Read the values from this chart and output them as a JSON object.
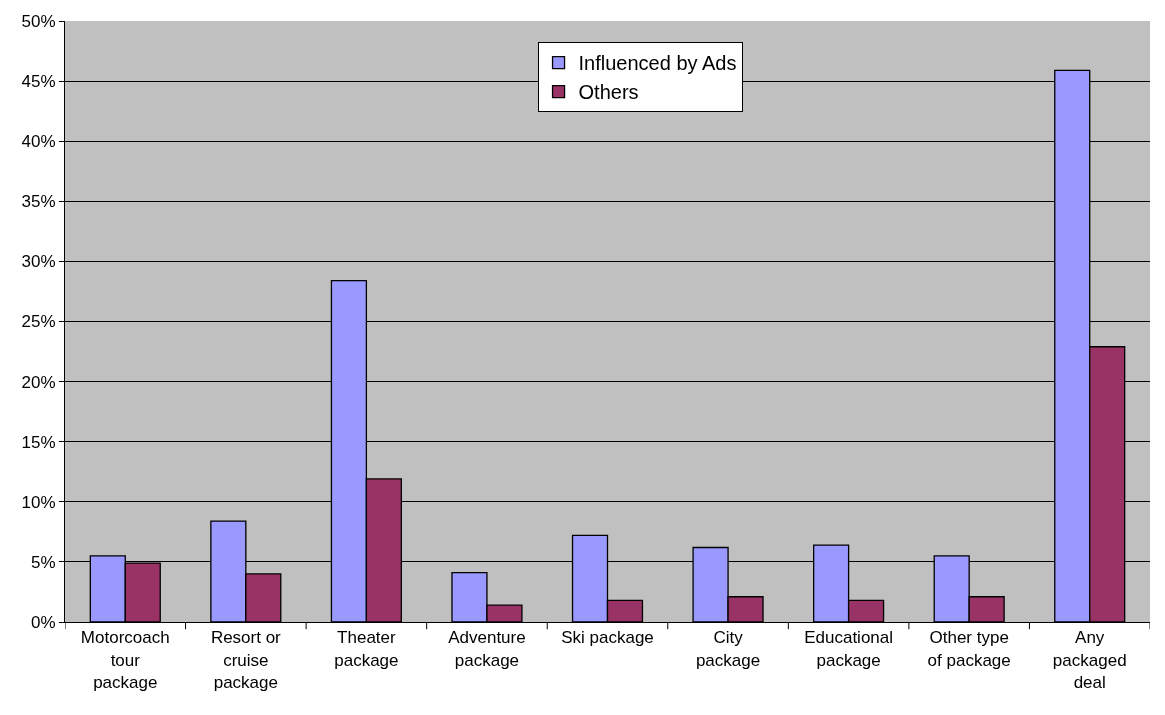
{
  "chart_data": {
    "type": "bar",
    "categories": [
      "Motorcoach tour package",
      "Resort or cruise package",
      "Theater package",
      "Adventure package",
      "Ski package",
      "City package",
      "Educational package",
      "Other type of package",
      "Any packaged deal"
    ],
    "series": [
      {
        "name": "Influenced by Ads",
        "color": "#9999ff",
        "values": [
          5.5,
          8.4,
          28.4,
          4.1,
          7.2,
          6.2,
          6.4,
          5.5,
          45.9
        ]
      },
      {
        "name": "Others",
        "color": "#993366",
        "values": [
          4.9,
          4.0,
          11.9,
          1.4,
          1.8,
          2.1,
          1.8,
          2.1,
          22.9
        ]
      }
    ],
    "ylim": [
      0,
      50
    ],
    "yticks": [
      {
        "value": 0,
        "label": "0%"
      },
      {
        "value": 5,
        "label": "5%"
      },
      {
        "value": 10,
        "label": "10%"
      },
      {
        "value": 15,
        "label": "15%"
      },
      {
        "value": 20,
        "label": "20%"
      },
      {
        "value": 25,
        "label": "25%"
      },
      {
        "value": 30,
        "label": "30%"
      },
      {
        "value": 35,
        "label": "35%"
      },
      {
        "value": 40,
        "label": "40%"
      },
      {
        "value": 45,
        "label": "45%"
      },
      {
        "value": 50,
        "label": "50%"
      }
    ],
    "grid": "y",
    "legend": "top"
  }
}
